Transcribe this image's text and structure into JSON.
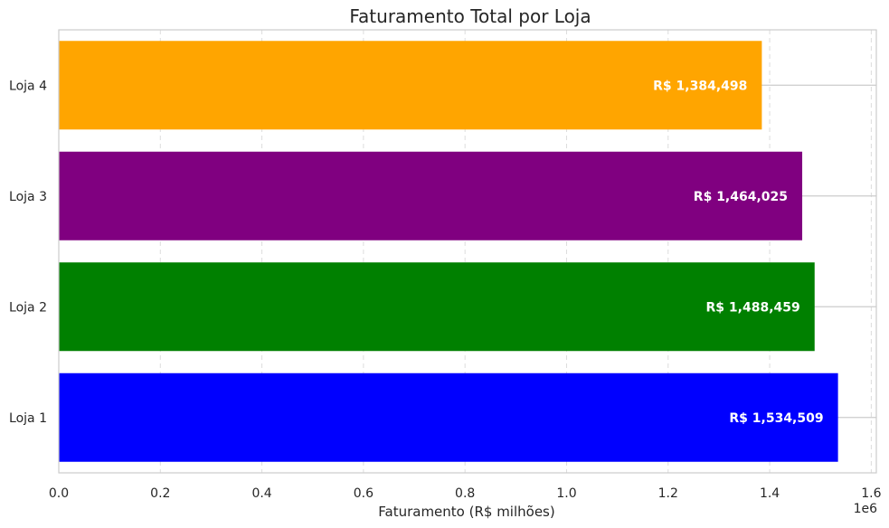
{
  "chart_data": {
    "type": "bar",
    "orientation": "horizontal",
    "title": "Faturamento Total por Loja",
    "xlabel": "Faturamento (R$ milhões)",
    "ylabel": "",
    "x_offset_label": "1e6",
    "xlim": [
      0,
      1610000
    ],
    "xticks": [
      0,
      200000,
      400000,
      600000,
      800000,
      1000000,
      1200000,
      1400000,
      1600000
    ],
    "xtick_labels": [
      "0.0",
      "0.2",
      "0.4",
      "0.6",
      "0.8",
      "1.0",
      "1.2",
      "1.4",
      "1.6"
    ],
    "categories": [
      "Loja 1",
      "Loja 2",
      "Loja 3",
      "Loja 4"
    ],
    "values": [
      1534509,
      1488459,
      1464025,
      1384498
    ],
    "data_labels": [
      "R$ 1,534,509",
      "R$ 1,488,459",
      "R$ 1,464,025",
      "R$ 1,384,498"
    ],
    "colors": [
      "#0000ff",
      "#008000",
      "#800080",
      "#ffa500"
    ],
    "grid": "x-dashed",
    "legend": "none"
  }
}
